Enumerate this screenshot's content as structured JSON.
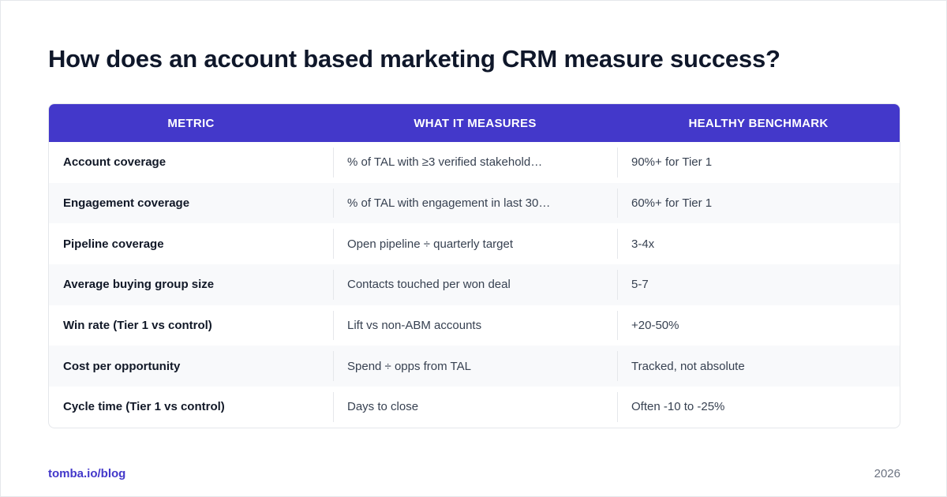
{
  "title": "How does an account based marketing CRM measure success?",
  "table": {
    "headers": [
      "METRIC",
      "WHAT IT MEASURES",
      "HEALTHY BENCHMARK"
    ],
    "rows": [
      [
        "Account coverage",
        "% of TAL with ≥3 verified stakehold…",
        "90%+ for Tier 1"
      ],
      [
        "Engagement coverage",
        "% of TAL with engagement in last 30…",
        "60%+ for Tier 1"
      ],
      [
        "Pipeline coverage",
        "Open pipeline ÷ quarterly target",
        "3-4x"
      ],
      [
        "Average buying group size",
        "Contacts touched per won deal",
        "5-7"
      ],
      [
        "Win rate (Tier 1 vs control)",
        "Lift vs non-ABM accounts",
        "+20-50%"
      ],
      [
        "Cost per opportunity",
        "Spend ÷ opps from TAL",
        "Tracked, not absolute"
      ],
      [
        "Cycle time (Tier 1 vs control)",
        "Days to close",
        "Often -10 to -25%"
      ]
    ]
  },
  "footer": {
    "link": "tomba.io/blog",
    "year": "2026"
  },
  "colors": {
    "header_bg": "#4338ca",
    "row_alt_bg": "#f8f9fb",
    "link": "#4338ca"
  }
}
